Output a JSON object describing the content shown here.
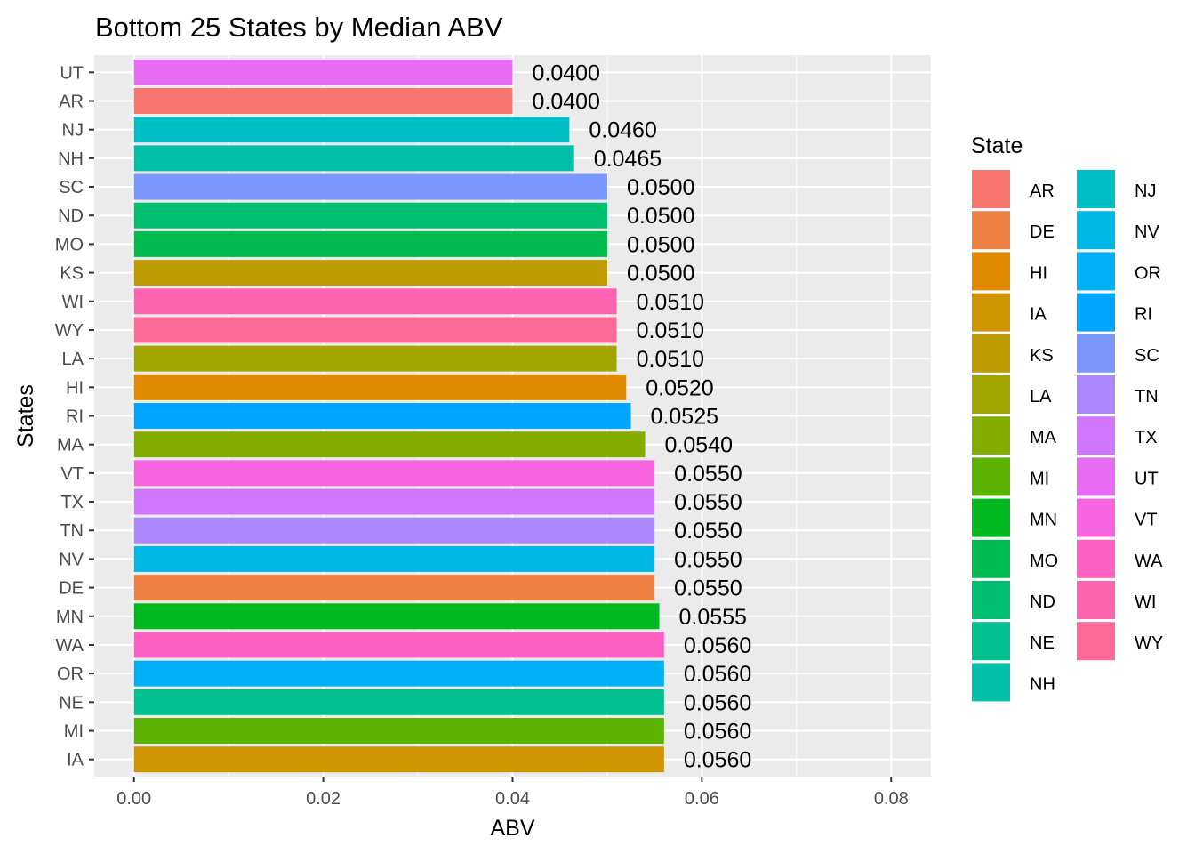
{
  "chart_data": {
    "type": "bar",
    "orientation": "horizontal",
    "title": "Bottom 25 States by Median ABV",
    "xlabel": "ABV",
    "ylabel": "States",
    "xlim": [
      -0.0042,
      0.0842
    ],
    "x_ticks": [
      0.0,
      0.02,
      0.04,
      0.06,
      0.08
    ],
    "x_tick_labels": [
      "0.00",
      "0.02",
      "0.04",
      "0.06",
      "0.08"
    ],
    "grid": true,
    "background": "#ebebeb",
    "legend": {
      "title": "State",
      "position": "right",
      "columns": 2,
      "entries": [
        {
          "label": "AR",
          "color": "#F8766D"
        },
        {
          "label": "DE",
          "color": "#EE8044"
        },
        {
          "label": "HI",
          "color": "#E18A00"
        },
        {
          "label": "IA",
          "color": "#D09400"
        },
        {
          "label": "KS",
          "color": "#BE9C00"
        },
        {
          "label": "LA",
          "color": "#A3A500"
        },
        {
          "label": "MA",
          "color": "#85AD00"
        },
        {
          "label": "MI",
          "color": "#5BB300"
        },
        {
          "label": "MN",
          "color": "#00B81F"
        },
        {
          "label": "MO",
          "color": "#00BB4E"
        },
        {
          "label": "ND",
          "color": "#00BE70"
        },
        {
          "label": "NE",
          "color": "#00C08D"
        },
        {
          "label": "NH",
          "color": "#00C0A8"
        },
        {
          "label": "NJ",
          "color": "#00BFC4"
        },
        {
          "label": "NV",
          "color": "#00B8E5"
        },
        {
          "label": "OR",
          "color": "#00B0F6"
        },
        {
          "label": "RI",
          "color": "#00A5FF"
        },
        {
          "label": "SC",
          "color": "#7997FF"
        },
        {
          "label": "TN",
          "color": "#AC88FF"
        },
        {
          "label": "TX",
          "color": "#D177FF"
        },
        {
          "label": "UT",
          "color": "#E76BF3"
        },
        {
          "label": "VT",
          "color": "#F863DF"
        },
        {
          "label": "WA",
          "color": "#FF61C3"
        },
        {
          "label": "WI",
          "color": "#FF64B0"
        },
        {
          "label": "WY",
          "color": "#FF6A98"
        }
      ]
    },
    "bars": [
      {
        "state": "UT",
        "value": 0.04,
        "label": "0.0400",
        "color": "#E76BF3"
      },
      {
        "state": "AR",
        "value": 0.04,
        "label": "0.0400",
        "color": "#F8766D"
      },
      {
        "state": "NJ",
        "value": 0.046,
        "label": "0.0460",
        "color": "#00BFC4"
      },
      {
        "state": "NH",
        "value": 0.0465,
        "label": "0.0465",
        "color": "#00C0A8"
      },
      {
        "state": "SC",
        "value": 0.05,
        "label": "0.0500",
        "color": "#7997FF"
      },
      {
        "state": "ND",
        "value": 0.05,
        "label": "0.0500",
        "color": "#00BE70"
      },
      {
        "state": "MO",
        "value": 0.05,
        "label": "0.0500",
        "color": "#00BB4E"
      },
      {
        "state": "KS",
        "value": 0.05,
        "label": "0.0500",
        "color": "#BE9C00"
      },
      {
        "state": "WI",
        "value": 0.051,
        "label": "0.0510",
        "color": "#FF64B0"
      },
      {
        "state": "WY",
        "value": 0.051,
        "label": "0.0510",
        "color": "#FF6A98"
      },
      {
        "state": "LA",
        "value": 0.051,
        "label": "0.0510",
        "color": "#A3A500"
      },
      {
        "state": "HI",
        "value": 0.052,
        "label": "0.0520",
        "color": "#E18A00"
      },
      {
        "state": "RI",
        "value": 0.0525,
        "label": "0.0525",
        "color": "#00A5FF"
      },
      {
        "state": "MA",
        "value": 0.054,
        "label": "0.0540",
        "color": "#85AD00"
      },
      {
        "state": "VT",
        "value": 0.055,
        "label": "0.0550",
        "color": "#F863DF"
      },
      {
        "state": "TX",
        "value": 0.055,
        "label": "0.0550",
        "color": "#D177FF"
      },
      {
        "state": "TN",
        "value": 0.055,
        "label": "0.0550",
        "color": "#AC88FF"
      },
      {
        "state": "NV",
        "value": 0.055,
        "label": "0.0550",
        "color": "#00B8E5"
      },
      {
        "state": "DE",
        "value": 0.055,
        "label": "0.0550",
        "color": "#EE8044"
      },
      {
        "state": "MN",
        "value": 0.0555,
        "label": "0.0555",
        "color": "#00B81F"
      },
      {
        "state": "WA",
        "value": 0.056,
        "label": "0.0560",
        "color": "#FF61C3"
      },
      {
        "state": "OR",
        "value": 0.056,
        "label": "0.0560",
        "color": "#00B0F6"
      },
      {
        "state": "NE",
        "value": 0.056,
        "label": "0.0560",
        "color": "#00C08D"
      },
      {
        "state": "MI",
        "value": 0.056,
        "label": "0.0560",
        "color": "#5BB300"
      },
      {
        "state": "IA",
        "value": 0.056,
        "label": "0.0560",
        "color": "#D09400"
      }
    ]
  }
}
